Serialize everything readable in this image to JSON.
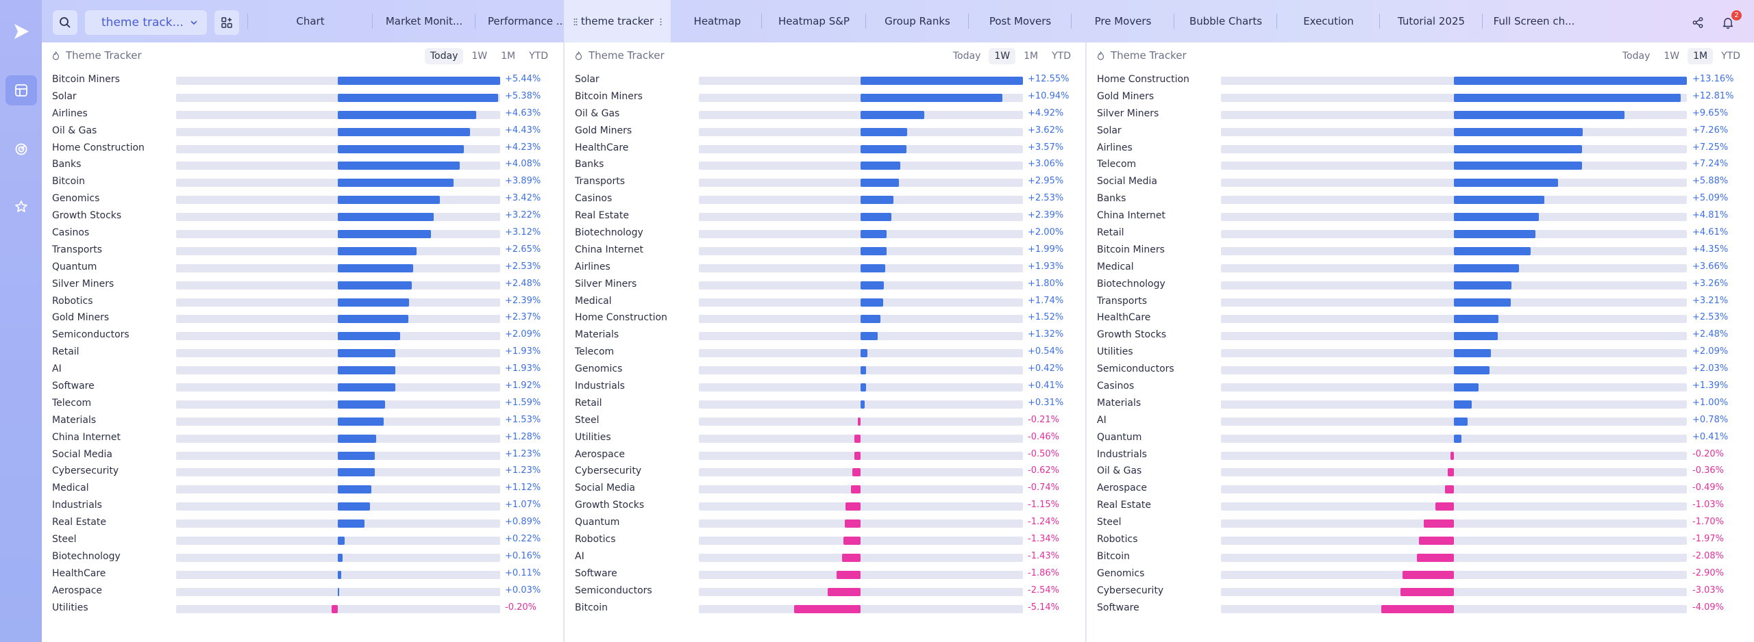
{
  "workspace": {
    "label": "theme track..."
  },
  "tabs": [
    {
      "label": "Chart",
      "active": false
    },
    {
      "label": "Market Monit...",
      "active": false
    },
    {
      "label": "Performance ...",
      "active": false
    },
    {
      "label": "theme tracker",
      "active": true
    },
    {
      "label": "Heatmap",
      "active": false
    },
    {
      "label": "Heatmap S&P",
      "active": false
    },
    {
      "label": "Group Ranks",
      "active": false
    },
    {
      "label": "Post Movers",
      "active": false
    },
    {
      "label": "Pre Movers",
      "active": false
    },
    {
      "label": "Bubble Charts",
      "active": false
    },
    {
      "label": "Execution",
      "active": false
    },
    {
      "label": "Tutorial 2025",
      "active": false
    },
    {
      "label": "Full Screen ch...",
      "active": false
    }
  ],
  "notifications": {
    "count": "2"
  },
  "colors": {
    "positive": "#3d73e3",
    "negative": "#ea36a5",
    "accent": "#4a5bd6"
  },
  "icons": {
    "rail": [
      "play-logo-icon",
      "layout-icon",
      "radar-icon",
      "star-icon"
    ],
    "topbar": [
      "search-icon",
      "chevron-down-icon",
      "widgets-icon",
      "share-icon",
      "bell-icon"
    ]
  },
  "panels": [
    {
      "title": "Theme Tracker",
      "periods": [
        "Today",
        "1W",
        "1M",
        "YTD"
      ],
      "active_period": "Today",
      "scale": 5.44,
      "rows": [
        {
          "name": "Bitcoin Miners",
          "value": "+5.44%",
          "num": 5.44
        },
        {
          "name": "Solar",
          "value": "+5.38%",
          "num": 5.38
        },
        {
          "name": "Airlines",
          "value": "+4.63%",
          "num": 4.63
        },
        {
          "name": "Oil & Gas",
          "value": "+4.43%",
          "num": 4.43
        },
        {
          "name": "Home Construction",
          "value": "+4.23%",
          "num": 4.23
        },
        {
          "name": "Banks",
          "value": "+4.08%",
          "num": 4.08
        },
        {
          "name": "Bitcoin",
          "value": "+3.89%",
          "num": 3.89
        },
        {
          "name": "Genomics",
          "value": "+3.42%",
          "num": 3.42
        },
        {
          "name": "Growth Stocks",
          "value": "+3.22%",
          "num": 3.22
        },
        {
          "name": "Casinos",
          "value": "+3.12%",
          "num": 3.12
        },
        {
          "name": "Transports",
          "value": "+2.65%",
          "num": 2.65
        },
        {
          "name": "Quantum",
          "value": "+2.53%",
          "num": 2.53
        },
        {
          "name": "Silver Miners",
          "value": "+2.48%",
          "num": 2.48
        },
        {
          "name": "Robotics",
          "value": "+2.39%",
          "num": 2.39
        },
        {
          "name": "Gold Miners",
          "value": "+2.37%",
          "num": 2.37
        },
        {
          "name": "Semiconductors",
          "value": "+2.09%",
          "num": 2.09
        },
        {
          "name": "Retail",
          "value": "+1.93%",
          "num": 1.93
        },
        {
          "name": "AI",
          "value": "+1.93%",
          "num": 1.93
        },
        {
          "name": "Software",
          "value": "+1.92%",
          "num": 1.92
        },
        {
          "name": "Telecom",
          "value": "+1.59%",
          "num": 1.59
        },
        {
          "name": "Materials",
          "value": "+1.53%",
          "num": 1.53
        },
        {
          "name": "China Internet",
          "value": "+1.28%",
          "num": 1.28
        },
        {
          "name": "Social Media",
          "value": "+1.23%",
          "num": 1.23
        },
        {
          "name": "Cybersecurity",
          "value": "+1.23%",
          "num": 1.23
        },
        {
          "name": "Medical",
          "value": "+1.12%",
          "num": 1.12
        },
        {
          "name": "Industrials",
          "value": "+1.07%",
          "num": 1.07
        },
        {
          "name": "Real Estate",
          "value": "+0.89%",
          "num": 0.89
        },
        {
          "name": "Steel",
          "value": "+0.22%",
          "num": 0.22
        },
        {
          "name": "Biotechnology",
          "value": "+0.16%",
          "num": 0.16
        },
        {
          "name": "HealthCare",
          "value": "+0.11%",
          "num": 0.11
        },
        {
          "name": "Aerospace",
          "value": "+0.03%",
          "num": 0.03
        },
        {
          "name": "Utilities",
          "value": "-0.20%",
          "num": -0.2
        }
      ]
    },
    {
      "title": "Theme Tracker",
      "periods": [
        "Today",
        "1W",
        "1M",
        "YTD"
      ],
      "active_period": "1W",
      "scale": 12.55,
      "rows": [
        {
          "name": "Solar",
          "value": "+12.55%",
          "num": 12.55
        },
        {
          "name": "Bitcoin Miners",
          "value": "+10.94%",
          "num": 10.94
        },
        {
          "name": "Oil & Gas",
          "value": "+4.92%",
          "num": 4.92
        },
        {
          "name": "Gold Miners",
          "value": "+3.62%",
          "num": 3.62
        },
        {
          "name": "HealthCare",
          "value": "+3.57%",
          "num": 3.57
        },
        {
          "name": "Banks",
          "value": "+3.06%",
          "num": 3.06
        },
        {
          "name": "Transports",
          "value": "+2.95%",
          "num": 2.95
        },
        {
          "name": "Casinos",
          "value": "+2.53%",
          "num": 2.53
        },
        {
          "name": "Real Estate",
          "value": "+2.39%",
          "num": 2.39
        },
        {
          "name": "Biotechnology",
          "value": "+2.00%",
          "num": 2.0
        },
        {
          "name": "China Internet",
          "value": "+1.99%",
          "num": 1.99
        },
        {
          "name": "Airlines",
          "value": "+1.93%",
          "num": 1.93
        },
        {
          "name": "Silver Miners",
          "value": "+1.80%",
          "num": 1.8
        },
        {
          "name": "Medical",
          "value": "+1.74%",
          "num": 1.74
        },
        {
          "name": "Home Construction",
          "value": "+1.52%",
          "num": 1.52
        },
        {
          "name": "Materials",
          "value": "+1.32%",
          "num": 1.32
        },
        {
          "name": "Telecom",
          "value": "+0.54%",
          "num": 0.54
        },
        {
          "name": "Genomics",
          "value": "+0.42%",
          "num": 0.42
        },
        {
          "name": "Industrials",
          "value": "+0.41%",
          "num": 0.41
        },
        {
          "name": "Retail",
          "value": "+0.31%",
          "num": 0.31
        },
        {
          "name": "Steel",
          "value": "-0.21%",
          "num": -0.21
        },
        {
          "name": "Utilities",
          "value": "-0.46%",
          "num": -0.46
        },
        {
          "name": "Aerospace",
          "value": "-0.50%",
          "num": -0.5
        },
        {
          "name": "Cybersecurity",
          "value": "-0.62%",
          "num": -0.62
        },
        {
          "name": "Social Media",
          "value": "-0.74%",
          "num": -0.74
        },
        {
          "name": "Growth Stocks",
          "value": "-1.15%",
          "num": -1.15
        },
        {
          "name": "Quantum",
          "value": "-1.24%",
          "num": -1.24
        },
        {
          "name": "Robotics",
          "value": "-1.34%",
          "num": -1.34
        },
        {
          "name": "AI",
          "value": "-1.43%",
          "num": -1.43
        },
        {
          "name": "Software",
          "value": "-1.86%",
          "num": -1.86
        },
        {
          "name": "Semiconductors",
          "value": "-2.54%",
          "num": -2.54
        },
        {
          "name": "Bitcoin",
          "value": "-5.14%",
          "num": -5.14
        }
      ]
    },
    {
      "title": "Theme Tracker",
      "periods": [
        "Today",
        "1W",
        "1M",
        "YTD"
      ],
      "active_period": "1M",
      "scale": 13.16,
      "rows": [
        {
          "name": "Home Construction",
          "value": "+13.16%",
          "num": 13.16
        },
        {
          "name": "Gold Miners",
          "value": "+12.81%",
          "num": 12.81
        },
        {
          "name": "Silver Miners",
          "value": "+9.65%",
          "num": 9.65
        },
        {
          "name": "Solar",
          "value": "+7.26%",
          "num": 7.26
        },
        {
          "name": "Airlines",
          "value": "+7.25%",
          "num": 7.25
        },
        {
          "name": "Telecom",
          "value": "+7.24%",
          "num": 7.24
        },
        {
          "name": "Social Media",
          "value": "+5.88%",
          "num": 5.88
        },
        {
          "name": "Banks",
          "value": "+5.09%",
          "num": 5.09
        },
        {
          "name": "China Internet",
          "value": "+4.81%",
          "num": 4.81
        },
        {
          "name": "Retail",
          "value": "+4.61%",
          "num": 4.61
        },
        {
          "name": "Bitcoin Miners",
          "value": "+4.35%",
          "num": 4.35
        },
        {
          "name": "Medical",
          "value": "+3.66%",
          "num": 3.66
        },
        {
          "name": "Biotechnology",
          "value": "+3.26%",
          "num": 3.26
        },
        {
          "name": "Transports",
          "value": "+3.21%",
          "num": 3.21
        },
        {
          "name": "HealthCare",
          "value": "+2.53%",
          "num": 2.53
        },
        {
          "name": "Growth Stocks",
          "value": "+2.48%",
          "num": 2.48
        },
        {
          "name": "Utilities",
          "value": "+2.09%",
          "num": 2.09
        },
        {
          "name": "Semiconductors",
          "value": "+2.03%",
          "num": 2.03
        },
        {
          "name": "Casinos",
          "value": "+1.39%",
          "num": 1.39
        },
        {
          "name": "Materials",
          "value": "+1.00%",
          "num": 1.0
        },
        {
          "name": "AI",
          "value": "+0.78%",
          "num": 0.78
        },
        {
          "name": "Quantum",
          "value": "+0.41%",
          "num": 0.41
        },
        {
          "name": "Industrials",
          "value": "-0.20%",
          "num": -0.2
        },
        {
          "name": "Oil & Gas",
          "value": "-0.36%",
          "num": -0.36
        },
        {
          "name": "Aerospace",
          "value": "-0.49%",
          "num": -0.49
        },
        {
          "name": "Real Estate",
          "value": "-1.03%",
          "num": -1.03
        },
        {
          "name": "Steel",
          "value": "-1.70%",
          "num": -1.7
        },
        {
          "name": "Robotics",
          "value": "-1.97%",
          "num": -1.97
        },
        {
          "name": "Bitcoin",
          "value": "-2.08%",
          "num": -2.08
        },
        {
          "name": "Genomics",
          "value": "-2.90%",
          "num": -2.9
        },
        {
          "name": "Cybersecurity",
          "value": "-3.03%",
          "num": -3.03
        },
        {
          "name": "Software",
          "value": "-4.09%",
          "num": -4.09
        }
      ]
    }
  ]
}
